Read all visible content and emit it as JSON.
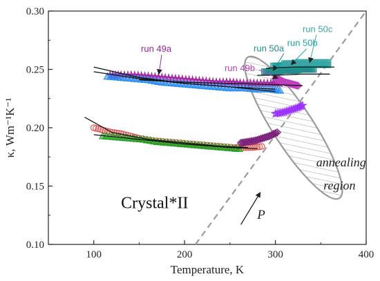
{
  "chart_data": {
    "type": "scatter",
    "title": "",
    "xlabel": "Temperature, K",
    "ylabel": "κ, Wm⁻¹K⁻¹",
    "xlim": [
      50,
      400
    ],
    "ylim": [
      0.1,
      0.3
    ],
    "x_ticks": [
      100,
      200,
      300,
      400
    ],
    "x_tick_labels": [
      "100",
      "200",
      "300",
      "400"
    ],
    "y_ticks": [
      0.1,
      0.15,
      0.2,
      0.25,
      0.3
    ],
    "y_tick_labels": [
      "0.10",
      "0.15",
      "0.20",
      "0.25",
      "0.30"
    ],
    "grid": false,
    "panel_label": "Crystal*II",
    "series": [
      {
        "name": "run 49a",
        "color": "#a020a0",
        "marker": "star",
        "x": [
          118,
          130,
          145,
          160,
          175,
          190,
          205,
          220,
          235,
          250,
          265,
          280,
          295,
          305
        ],
        "y": [
          0.245,
          0.245,
          0.245,
          0.244,
          0.243,
          0.242,
          0.241,
          0.24,
          0.239,
          0.239,
          0.238,
          0.238,
          0.238,
          0.238
        ],
        "label_pos": [
          152,
          0.265
        ]
      },
      {
        "name": "",
        "color": "#2a8cf0",
        "marker": "triangle",
        "x": [
          115,
          130,
          145,
          160,
          175,
          190,
          205,
          220,
          235,
          250,
          265,
          280,
          295,
          305
        ],
        "y": [
          0.244,
          0.243,
          0.242,
          0.241,
          0.239,
          0.238,
          0.237,
          0.236,
          0.235,
          0.234,
          0.234,
          0.233,
          0.233,
          0.232
        ]
      },
      {
        "name": "run 49b",
        "color": "#c040c0",
        "marker": "diamond",
        "x": [
          300,
          305,
          310,
          315,
          320,
          325
        ],
        "y": [
          0.242,
          0.241,
          0.239,
          0.238,
          0.237,
          0.236
        ],
        "label_pos": [
          244,
          0.2485
        ]
      },
      {
        "name": "run 50a",
        "color": "#228b8b",
        "marker": "square",
        "x": [
          288,
          295,
          302,
          308,
          315,
          322,
          328,
          335,
          342
        ],
        "y": [
          0.248,
          0.248,
          0.248,
          0.249,
          0.249,
          0.249,
          0.25,
          0.25,
          0.25
        ],
        "label_pos": [
          276,
          0.2655
        ]
      },
      {
        "name": "run 50b",
        "color": "#1aa0a0",
        "marker": "square",
        "x": [
          298,
          305,
          312,
          320,
          328,
          336,
          344,
          352,
          358
        ],
        "y": [
          0.253,
          0.253,
          0.254,
          0.254,
          0.254,
          0.254,
          0.254,
          0.254,
          0.254
        ],
        "label_pos": [
          313,
          0.27
        ]
      },
      {
        "name": "run 50c",
        "color": "#3aa6a6",
        "marker": "square",
        "x": [
          310,
          318,
          326,
          334,
          342,
          350,
          358
        ],
        "y": [
          0.255,
          0.255,
          0.256,
          0.256,
          0.256,
          0.256,
          0.256
        ],
        "label_pos": [
          330,
          0.282
        ]
      },
      {
        "name": "",
        "color": "#9b30ff",
        "marker": "star",
        "x": [
          300,
          308,
          316,
          324,
          330
        ],
        "y": [
          0.212,
          0.213,
          0.215,
          0.217,
          0.219
        ]
      },
      {
        "name": "",
        "color": "#e05050",
        "marker": "circle",
        "x": [
          100,
          110,
          120,
          130,
          140,
          150,
          165,
          180,
          195,
          210,
          225,
          240,
          255,
          265,
          275,
          285
        ],
        "y": [
          0.2,
          0.198,
          0.196,
          0.195,
          0.193,
          0.191,
          0.189,
          0.188,
          0.187,
          0.186,
          0.185,
          0.184,
          0.183,
          0.183,
          0.183,
          0.184
        ]
      },
      {
        "name": "",
        "color": "#20a020",
        "marker": "triangle",
        "x": [
          110,
          125,
          140,
          155,
          170,
          185,
          200,
          215,
          230,
          245,
          260
        ],
        "y": [
          0.193,
          0.192,
          0.191,
          0.19,
          0.188,
          0.187,
          0.186,
          0.185,
          0.184,
          0.183,
          0.182
        ]
      },
      {
        "name": "",
        "color": "#7a1f7a",
        "marker": "diamond",
        "x": [
          262,
          270,
          278,
          286,
          294,
          302
        ],
        "y": [
          0.187,
          0.188,
          0.189,
          0.191,
          0.193,
          0.196
        ]
      }
    ],
    "fit_lines": [
      {
        "x": [
          100,
          150,
          200,
          250,
          300
        ],
        "y": [
          0.252,
          0.243,
          0.238,
          0.235,
          0.233
        ]
      },
      {
        "x": [
          100,
          150,
          200,
          250,
          300
        ],
        "y": [
          0.248,
          0.242,
          0.238,
          0.235,
          0.231
        ]
      },
      {
        "x": [
          150,
          200,
          250,
          300,
          330
        ],
        "y": [
          0.241,
          0.239,
          0.238,
          0.237,
          0.236
        ]
      },
      {
        "x": [
          280,
          300,
          330,
          360
        ],
        "y": [
          0.245,
          0.245,
          0.246,
          0.246
        ]
      },
      {
        "x": [
          290,
          320,
          350,
          365
        ],
        "y": [
          0.251,
          0.252,
          0.252,
          0.252
        ]
      },
      {
        "x": [
          90,
          120,
          160,
          200,
          240,
          270
        ],
        "y": [
          0.209,
          0.196,
          0.19,
          0.187,
          0.184,
          0.183
        ]
      },
      {
        "x": [
          100,
          150,
          200,
          250,
          280
        ],
        "y": [
          0.194,
          0.19,
          0.186,
          0.183,
          0.182
        ]
      }
    ],
    "dashed_line": {
      "x": [
        212,
        400
      ],
      "y": [
        0.1,
        0.3
      ]
    },
    "ellipse": {
      "center": [
        320,
        0.2
      ],
      "rx_data": 22,
      "ry_data": 0.072,
      "rotation_deg": -33
    },
    "annotations": {
      "region_line1": "annealing",
      "region_line2": "region",
      "pressure_label": "P",
      "region_pos": [
        345,
        0.167
      ],
      "region_pos2": [
        353,
        0.147
      ],
      "p_pos": [
        280,
        0.122
      ],
      "arrow_from": [
        262,
        0.117
      ],
      "arrow_to": [
        283,
        0.144
      ]
    }
  }
}
